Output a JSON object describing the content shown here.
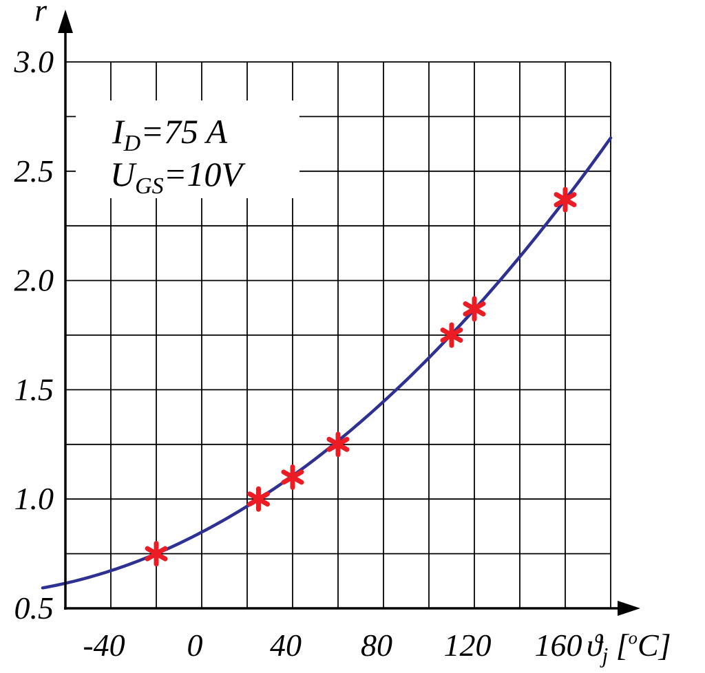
{
  "chart_data": {
    "type": "line",
    "title": "",
    "ylabel": "r",
    "xlabel": "ϑj [°C]",
    "xlabel_parts": [
      {
        "t": "ϑ"
      },
      {
        "t": "j",
        "style": "sub"
      },
      {
        "t": " ["
      },
      {
        "t": "o",
        "style": "sup"
      },
      {
        "t": "C]"
      }
    ],
    "annotation": {
      "line1_text": "ID=75 A",
      "line1_parts": [
        {
          "t": "I"
        },
        {
          "t": "D",
          "style": "sub"
        },
        {
          "t": "=75 A"
        }
      ],
      "line2_text": "UGS=10V",
      "line2_parts": [
        {
          "t": "U"
        },
        {
          "t": "GS",
          "style": "sub"
        },
        {
          "t": "=10V"
        }
      ]
    },
    "x_ticks": [
      -40,
      0,
      40,
      80,
      120,
      160
    ],
    "x_tick_labels": [
      "-40",
      "0",
      "40",
      "80",
      "120",
      "160"
    ],
    "y_ticks": [
      0.5,
      1.0,
      1.5,
      2.0,
      2.5,
      3.0
    ],
    "y_tick_labels": [
      "0.5",
      "1.0",
      "1.5",
      "2.0",
      "2.5",
      "3.0"
    ],
    "xlim": [
      -60,
      180
    ],
    "ylim": [
      0.5,
      3.0
    ],
    "x_grid_step": 20,
    "y_grid_step": 0.25,
    "grid": true,
    "points": [
      [
        -20,
        0.75
      ],
      [
        25,
        1.0
      ],
      [
        40,
        1.1
      ],
      [
        60,
        1.25
      ],
      [
        110,
        1.75
      ],
      [
        120,
        1.87
      ],
      [
        160,
        2.37
      ]
    ],
    "curve": {
      "type": "quadratic",
      "coeffs": [
        0.8484,
        0.0054281,
        2.5514e-05
      ],
      "x_range": [
        -70,
        180
      ]
    },
    "colors": {
      "curve": "#2e3192",
      "marker": "#ec1c24",
      "grid": "#000000",
      "axis": "#000000",
      "background": "#ffffff"
    }
  }
}
